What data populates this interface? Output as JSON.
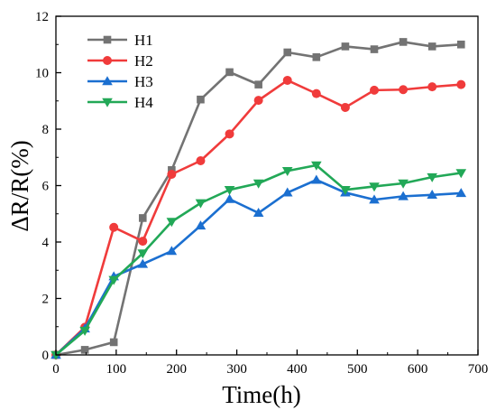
{
  "chart_data": {
    "type": "line",
    "xlabel": "Time(h)",
    "ylabel": "ΔR/R(%)",
    "xlim": [
      0,
      700
    ],
    "ylim": [
      0,
      12
    ],
    "xticks": [
      0,
      100,
      200,
      300,
      400,
      500,
      600,
      700
    ],
    "yticks": [
      0,
      2,
      4,
      6,
      8,
      10,
      12
    ],
    "legend_position": "top-left",
    "grid": false,
    "series": [
      {
        "name": "H1",
        "color": "#737373",
        "marker": "square",
        "x": [
          0,
          48,
          96,
          144,
          192,
          240,
          288,
          336,
          384,
          432,
          480,
          528,
          576,
          624,
          672
        ],
        "y": [
          0,
          0.18,
          0.45,
          4.85,
          6.55,
          9.05,
          10.02,
          9.58,
          10.72,
          10.55,
          10.93,
          10.83,
          11.09,
          10.93,
          11.0
        ]
      },
      {
        "name": "H2",
        "color": "#f03b3b",
        "marker": "circle",
        "x": [
          0,
          48,
          96,
          144,
          192,
          240,
          288,
          336,
          384,
          432,
          480,
          528,
          576,
          624,
          672
        ],
        "y": [
          0,
          0.98,
          4.52,
          4.03,
          6.4,
          6.88,
          7.83,
          9.02,
          9.73,
          9.26,
          8.77,
          9.38,
          9.4,
          9.5,
          9.58
        ]
      },
      {
        "name": "H3",
        "color": "#1b6fd0",
        "marker": "triangle-up",
        "x": [
          0,
          48,
          96,
          144,
          192,
          240,
          288,
          336,
          384,
          432,
          480,
          528,
          576,
          624,
          672
        ],
        "y": [
          0,
          0.93,
          2.78,
          3.22,
          3.68,
          4.58,
          5.52,
          5.03,
          5.75,
          6.2,
          5.75,
          5.5,
          5.62,
          5.67,
          5.73
        ]
      },
      {
        "name": "H4",
        "color": "#22a857",
        "marker": "triangle-down",
        "x": [
          0,
          48,
          96,
          144,
          192,
          240,
          288,
          336,
          384,
          432,
          480,
          528,
          576,
          624,
          672
        ],
        "y": [
          0,
          0.86,
          2.66,
          3.6,
          4.72,
          5.38,
          5.85,
          6.08,
          6.52,
          6.72,
          5.85,
          5.97,
          6.08,
          6.3,
          6.45
        ]
      }
    ]
  }
}
